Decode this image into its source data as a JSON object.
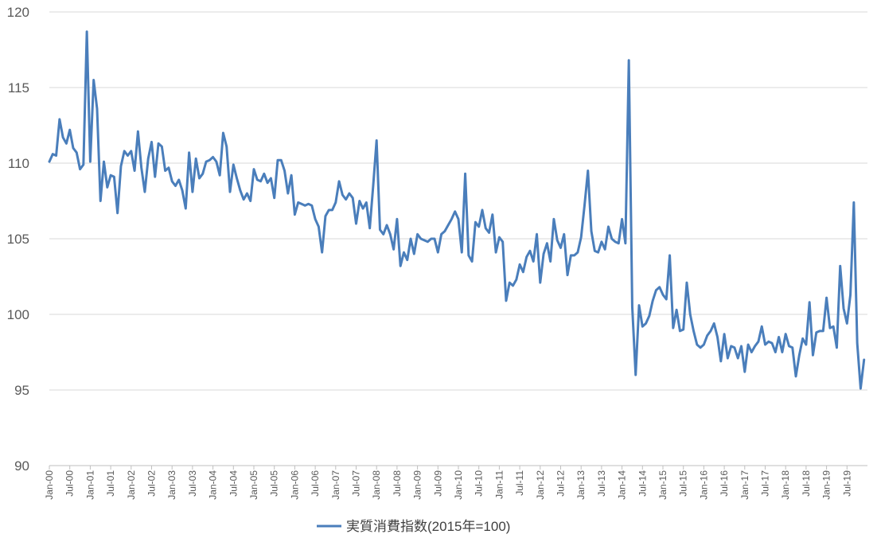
{
  "chart_data": {
    "type": "line",
    "title": "",
    "xlabel": "",
    "ylabel": "",
    "ylim": [
      90,
      120
    ],
    "yticks": [
      90,
      95,
      100,
      105,
      110,
      115,
      120
    ],
    "grid": "horizontal",
    "legend_position": "bottom",
    "color": "#4A7EBB",
    "x_start": "2000-01",
    "tick_labels": [
      "Jan-00",
      "Jul-00",
      "Jan-01",
      "Jul-01",
      "Jan-02",
      "Jul-02",
      "Jan-03",
      "Jul-03",
      "Jan-04",
      "Jul-04",
      "Jan-05",
      "Jul-05",
      "Jan-06",
      "Jul-06",
      "Jan-07",
      "Jul-07",
      "Jan-08",
      "Jul-08",
      "Jan-09",
      "Jul-09",
      "Jan-10",
      "Jul-10",
      "Jan-11",
      "Jul-11",
      "Jan-12",
      "Jul-12",
      "Jan-13",
      "Jul-13",
      "Jan-14",
      "Jul-14",
      "Jan-15",
      "Jul-15",
      "Jan-16",
      "Jul-16",
      "Jan-17",
      "Jul-17",
      "Jan-18",
      "Jul-18",
      "Jan-19",
      "Jul-19"
    ],
    "series": [
      {
        "name": "実質消費指数(2015年=100)",
        "values": [
          110.1,
          110.6,
          110.5,
          112.9,
          111.7,
          111.3,
          112.2,
          111.0,
          110.7,
          109.6,
          109.9,
          118.7,
          110.1,
          115.5,
          113.6,
          107.5,
          110.1,
          108.4,
          109.2,
          109.1,
          106.7,
          109.8,
          110.8,
          110.5,
          110.8,
          109.5,
          112.1,
          109.7,
          108.1,
          110.3,
          111.4,
          109.1,
          111.3,
          111.1,
          109.5,
          109.7,
          108.8,
          108.5,
          108.9,
          108.2,
          107.0,
          110.7,
          108.1,
          110.3,
          109.0,
          109.3,
          110.1,
          110.2,
          110.4,
          110.1,
          109.2,
          112.0,
          111.1,
          108.1,
          109.9,
          109.0,
          108.2,
          107.6,
          108.0,
          107.5,
          109.6,
          108.9,
          108.8,
          109.3,
          108.7,
          109.0,
          107.7,
          110.2,
          110.2,
          109.5,
          108.0,
          109.2,
          106.6,
          107.4,
          107.3,
          107.2,
          107.3,
          107.2,
          106.3,
          105.8,
          104.1,
          106.5,
          106.9,
          106.9,
          107.4,
          108.8,
          107.9,
          107.6,
          108.0,
          107.7,
          106.0,
          107.5,
          107.0,
          107.4,
          105.7,
          108.5,
          111.5,
          105.6,
          105.3,
          105.9,
          105.3,
          104.3,
          106.3,
          103.2,
          104.1,
          103.6,
          105.0,
          104.0,
          105.3,
          105.0,
          104.9,
          104.8,
          105.0,
          105.0,
          104.1,
          105.3,
          105.5,
          105.9,
          106.3,
          106.8,
          106.3,
          104.1,
          109.3,
          103.9,
          103.5,
          106.1,
          105.8,
          106.9,
          105.7,
          105.4,
          106.6,
          104.1,
          105.1,
          104.8,
          100.9,
          102.1,
          101.9,
          102.3,
          103.3,
          102.8,
          103.8,
          104.2,
          103.5,
          105.3,
          102.1,
          104.0,
          104.7,
          103.5,
          106.3,
          104.9,
          104.4,
          105.3,
          102.6,
          103.9,
          103.9,
          104.1,
          105.1,
          107.2,
          109.5,
          105.5,
          104.2,
          104.1,
          104.8,
          104.3,
          105.8,
          105.0,
          104.8,
          104.7,
          106.3,
          104.7,
          116.8,
          100.5,
          96.0,
          100.6,
          99.2,
          99.4,
          99.9,
          100.9,
          101.6,
          101.8,
          101.3,
          101.0,
          103.9,
          99.1,
          100.3,
          98.9,
          99.0,
          102.1,
          100.0,
          98.9,
          98.0,
          97.8,
          98.0,
          98.6,
          98.9,
          99.4,
          98.5,
          96.9,
          98.7,
          97.1,
          97.9,
          97.8,
          97.1,
          97.9,
          96.2,
          98.0,
          97.5,
          97.9,
          98.2,
          99.2,
          98.0,
          98.2,
          98.1,
          97.5,
          98.5,
          97.5,
          98.7,
          97.9,
          97.8,
          95.9,
          97.3,
          98.4,
          98.0,
          100.8,
          97.3,
          98.8,
          98.9,
          98.9,
          101.1,
          99.1,
          99.2,
          97.8,
          103.2,
          100.4,
          99.4,
          101.3,
          107.4,
          98.1,
          95.1,
          97.0
        ]
      }
    ]
  }
}
